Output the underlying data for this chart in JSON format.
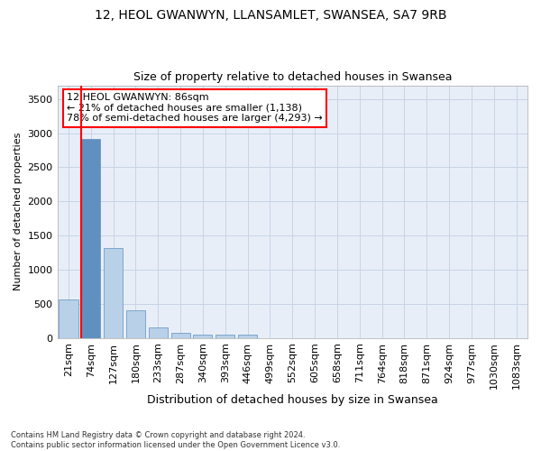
{
  "title1": "12, HEOL GWANWYN, LLANSAMLET, SWANSEA, SA7 9RB",
  "title2": "Size of property relative to detached houses in Swansea",
  "xlabel": "Distribution of detached houses by size in Swansea",
  "ylabel": "Number of detached properties",
  "footnote": "Contains HM Land Registry data © Crown copyright and database right 2024.\nContains public sector information licensed under the Open Government Licence v3.0.",
  "annotation_title": "12 HEOL GWANWYN: 86sqm",
  "annotation_line2": "← 21% of detached houses are smaller (1,138)",
  "annotation_line3": "78% of semi-detached houses are larger (4,293) →",
  "bar_color": "#b8d0e8",
  "bar_edge_color": "#6090c0",
  "highlight_bar_index": 1,
  "highlight_color": "#6090c0",
  "categories": [
    "21sqm",
    "74sqm",
    "127sqm",
    "180sqm",
    "233sqm",
    "287sqm",
    "340sqm",
    "393sqm",
    "446sqm",
    "499sqm",
    "552sqm",
    "605sqm",
    "658sqm",
    "711sqm",
    "764sqm",
    "818sqm",
    "871sqm",
    "924sqm",
    "977sqm",
    "1030sqm",
    "1083sqm"
  ],
  "values": [
    570,
    2920,
    1320,
    410,
    155,
    80,
    55,
    50,
    45,
    0,
    0,
    0,
    0,
    0,
    0,
    0,
    0,
    0,
    0,
    0,
    0
  ],
  "ylim": [
    0,
    3700
  ],
  "yticks": [
    0,
    500,
    1000,
    1500,
    2000,
    2500,
    3000,
    3500
  ],
  "annotation_box_color": "white",
  "annotation_box_edge": "red",
  "grid_color": "#c8d4e4",
  "bg_color": "#e8eef8",
  "title1_fontsize": 10,
  "title2_fontsize": 9,
  "xlabel_fontsize": 9,
  "ylabel_fontsize": 8,
  "tick_fontsize": 8,
  "annot_fontsize": 8
}
